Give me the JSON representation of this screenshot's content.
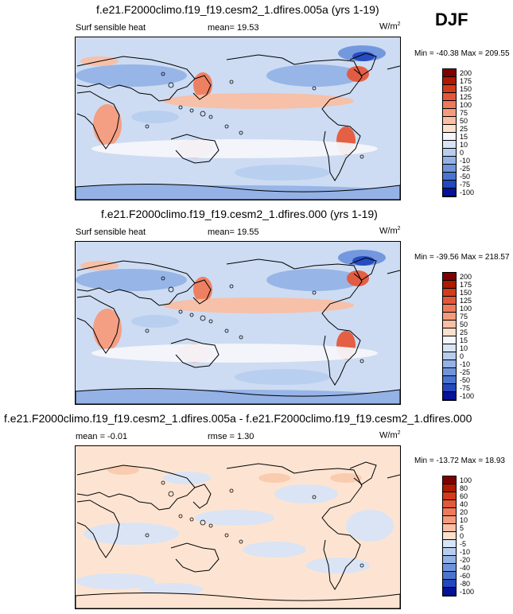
{
  "season": "DJF",
  "panels": [
    {
      "title": "f.e21.F2000climo.f19_f19.cesm2_1.dfires.005a (yrs 1-19)",
      "left_label": "Surf sensible heat",
      "mid_label": "mean=  19.53",
      "units": "W/m",
      "units_sup": "2",
      "minmax": "Min = -40.38 Max = 209.55",
      "colorbar_labels": [
        "200",
        "175",
        "150",
        "125",
        "100",
        "75",
        "50",
        "25",
        "15",
        "10",
        "0",
        "-10",
        "-25",
        "-50",
        "-75",
        "-100"
      ],
      "colorbar_colors": [
        "#7f0000",
        "#b01a00",
        "#d43b1a",
        "#e5573a",
        "#ef7a5a",
        "#f59b7d",
        "#f9bea3",
        "#fde0cc",
        "#f4f6fb",
        "#d8e4f5",
        "#b7cdee",
        "#94b2e6",
        "#6f94dc",
        "#4a74d0",
        "#2348bf",
        "#06129a"
      ],
      "field": "abs"
    },
    {
      "title": "f.e21.F2000climo.f19_f19.cesm2_1.dfires.000 (yrs 1-19)",
      "left_label": "Surf sensible heat",
      "mid_label": "mean=  19.55",
      "units": "W/m",
      "units_sup": "2",
      "minmax": "Min = -39.56 Max = 218.57",
      "colorbar_labels": [
        "200",
        "175",
        "150",
        "125",
        "100",
        "75",
        "50",
        "25",
        "15",
        "10",
        "0",
        "-10",
        "-25",
        "-50",
        "-75",
        "-100"
      ],
      "colorbar_colors": [
        "#7f0000",
        "#b01a00",
        "#d43b1a",
        "#e5573a",
        "#ef7a5a",
        "#f59b7d",
        "#f9bea3",
        "#fde0cc",
        "#f4f6fb",
        "#d8e4f5",
        "#b7cdee",
        "#94b2e6",
        "#6f94dc",
        "#4a74d0",
        "#2348bf",
        "#06129a"
      ],
      "field": "abs"
    },
    {
      "title": "f.e21.F2000climo.f19_f19.cesm2_1.dfires.005a - f.e21.F2000climo.f19_f19.cesm2_1.dfires.000",
      "left_label": "mean =  -0.01",
      "mid_label": "rmse =   1.30",
      "units": "W/m",
      "units_sup": "2",
      "minmax": "Min = -13.72 Max =  18.93",
      "colorbar_labels": [
        "100",
        "80",
        "60",
        "40",
        "20",
        "10",
        "5",
        "0",
        "-5",
        "-10",
        "-20",
        "-40",
        "-60",
        "-80",
        "-100"
      ],
      "colorbar_colors": [
        "#7f0000",
        "#b01a00",
        "#d43b1a",
        "#e5573a",
        "#ef7a5a",
        "#f59b7d",
        "#f9bea3",
        "#fde0cc",
        "#d8e4f5",
        "#b7cdee",
        "#94b2e6",
        "#6f94dc",
        "#4a74d0",
        "#2348bf",
        "#06129a"
      ],
      "field": "diff"
    }
  ],
  "chart_data": [
    {
      "type": "heatmap",
      "title": "f.e21.F2000climo.f19_f19.cesm2_1.dfires.005a (yrs 1-19)",
      "variable": "Surf sensible heat",
      "units": "W/m2",
      "season": "DJF",
      "mean": 19.53,
      "min": -40.38,
      "max": 209.55,
      "levels": [
        -100,
        -75,
        -50,
        -25,
        -10,
        0,
        10,
        15,
        25,
        50,
        75,
        100,
        125,
        150,
        175,
        200
      ]
    },
    {
      "type": "heatmap",
      "title": "f.e21.F2000climo.f19_f19.cesm2_1.dfires.000 (yrs 1-19)",
      "variable": "Surf sensible heat",
      "units": "W/m2",
      "season": "DJF",
      "mean": 19.55,
      "min": -39.56,
      "max": 218.57,
      "levels": [
        -100,
        -75,
        -50,
        -25,
        -10,
        0,
        10,
        15,
        25,
        50,
        75,
        100,
        125,
        150,
        175,
        200
      ]
    },
    {
      "type": "heatmap",
      "title": "f.e21.F2000climo.f19_f19.cesm2_1.dfires.005a - f.e21.F2000climo.f19_f19.cesm2_1.dfires.000",
      "units": "W/m2",
      "mean": -0.01,
      "rmse": 1.3,
      "min": -13.72,
      "max": 18.93,
      "levels": [
        -100,
        -80,
        -60,
        -40,
        -20,
        -10,
        -5,
        0,
        5,
        10,
        20,
        40,
        60,
        80,
        100
      ]
    }
  ]
}
